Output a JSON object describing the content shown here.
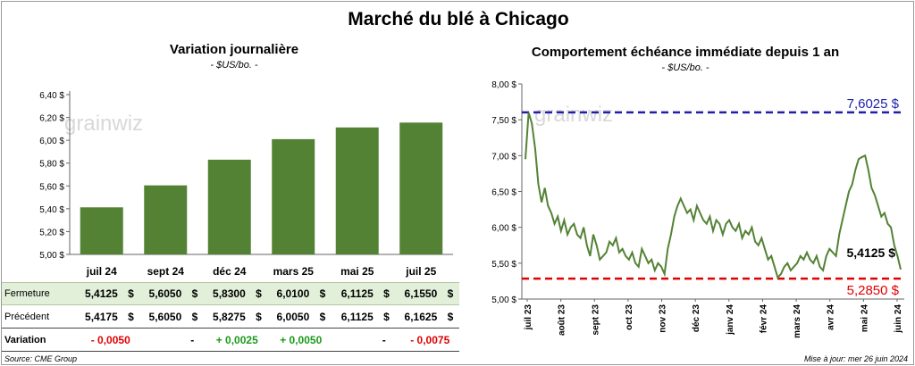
{
  "main_title": "Marché du blé à Chicago",
  "colors": {
    "bar": "#548235",
    "line": "#548235",
    "max_line": "#1f1fa8",
    "min_line": "#e00000",
    "positive": "#1a9a1a",
    "negative": "#e00000",
    "table_highlight": "#e2efd9"
  },
  "watermark": "grainwiz",
  "chart_data": [
    {
      "type": "bar",
      "title": "Variation journalière",
      "subtitle": "- $US/bo. -",
      "categories": [
        "juil 24",
        "sept 24",
        "déc 24",
        "mars 25",
        "mai 25",
        "juil 25"
      ],
      "values": [
        5.4125,
        5.605,
        5.83,
        6.01,
        6.1125,
        6.155
      ],
      "ylim": [
        5.0,
        6.4
      ],
      "yticks": [
        "5,00 $",
        "5,20 $",
        "5,40 $",
        "5,60 $",
        "5,80 $",
        "6,00 $",
        "6,20 $",
        "6,40 $"
      ],
      "ytick_values": [
        5.0,
        5.2,
        5.4,
        5.6,
        5.8,
        6.0,
        6.2,
        6.4
      ],
      "table": {
        "rows": [
          {
            "label": "Fermeture",
            "values": [
              "5,4125",
              "5,6050",
              "5,8300",
              "6,0100",
              "6,1125",
              "6,1550"
            ],
            "currency": "$"
          },
          {
            "label": "Précédent",
            "values": [
              "5,4175",
              "5,6050",
              "5,8275",
              "6,0050",
              "6,1125",
              "6,1625"
            ],
            "currency": "$"
          }
        ],
        "variation": {
          "label": "Variation",
          "values": [
            "- 0,0050",
            "-",
            "+ 0,0025",
            "+ 0,0050",
            "-",
            "- 0,0075"
          ],
          "sign": [
            "neg",
            "zero",
            "pos",
            "pos",
            "zero",
            "neg"
          ]
        }
      }
    },
    {
      "type": "line",
      "title": "Comportement échéance immédiate depuis 1 an",
      "subtitle": "- $US/bo. -",
      "ylim": [
        5.0,
        8.0
      ],
      "yticks": [
        "5,00 $",
        "5,50 $",
        "6,00 $",
        "6,50 $",
        "7,00 $",
        "7,50 $",
        "8,00 $"
      ],
      "ytick_values": [
        5.0,
        5.5,
        6.0,
        6.5,
        7.0,
        7.5,
        8.0
      ],
      "xlabels": [
        "juil 23",
        "août 23",
        "sept 23",
        "oct 23",
        "nov 23",
        "déc 23",
        "janv 24",
        "févr 24",
        "mars 24",
        "avr 24",
        "mai 24",
        "juin 24"
      ],
      "max": 7.6025,
      "max_label": "7,6025 $",
      "min": 5.285,
      "min_label": "5,2850 $",
      "last": 5.4125,
      "last_label": "5,4125 $",
      "series": [
        6.95,
        7.6,
        7.45,
        7.1,
        6.6,
        6.35,
        6.55,
        6.3,
        6.2,
        6.05,
        6.15,
        5.95,
        6.1,
        5.9,
        6.0,
        6.05,
        5.9,
        5.85,
        6.0,
        5.75,
        5.6,
        5.9,
        5.75,
        5.55,
        5.6,
        5.65,
        5.8,
        5.75,
        5.85,
        5.65,
        5.7,
        5.6,
        5.55,
        5.65,
        5.5,
        5.45,
        5.7,
        5.6,
        5.5,
        5.55,
        5.4,
        5.5,
        5.45,
        5.35,
        5.7,
        5.9,
        6.15,
        6.3,
        6.4,
        6.3,
        6.2,
        6.25,
        6.1,
        6.3,
        6.2,
        6.1,
        6.05,
        6.15,
        5.95,
        6.1,
        6.05,
        5.9,
        6.05,
        6.1,
        6.0,
        5.95,
        6.05,
        5.85,
        5.95,
        5.9,
        6.0,
        5.8,
        5.75,
        5.85,
        5.7,
        5.55,
        5.6,
        5.45,
        5.3,
        5.35,
        5.45,
        5.5,
        5.4,
        5.45,
        5.5,
        5.6,
        5.55,
        5.65,
        5.55,
        5.5,
        5.6,
        5.45,
        5.4,
        5.6,
        5.7,
        5.65,
        5.6,
        5.9,
        6.1,
        6.3,
        6.5,
        6.6,
        6.8,
        6.95,
        6.98,
        7.0,
        6.8,
        6.55,
        6.45,
        6.3,
        6.15,
        6.2,
        6.05,
        6.0,
        5.75,
        5.6,
        5.4125
      ]
    }
  ],
  "source": "Source: CME Group",
  "update": "Mise à jour: mer 26 juin 2024"
}
